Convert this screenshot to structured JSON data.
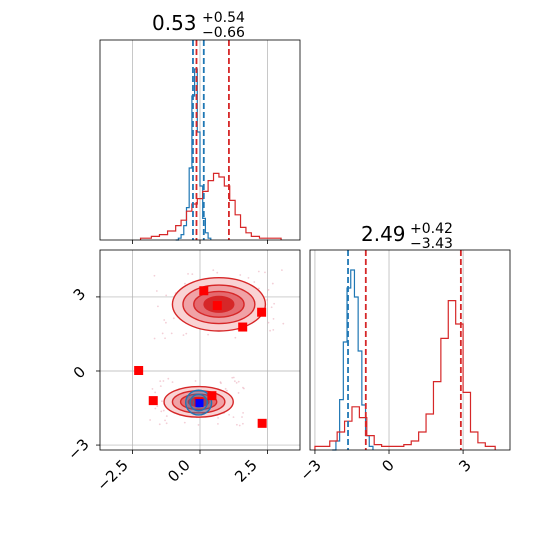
{
  "chart_data": {
    "type": "corner",
    "panels": [
      {
        "id": "hist-x",
        "type": "histogram",
        "title": {
          "value": "0.53",
          "sup": "+0.54",
          "sub": "−0.66"
        },
        "xlim": [
          -3.7,
          3.7
        ],
        "grid": true,
        "series": [
          {
            "name": "",
            "color": "#1f77b4",
            "bins": [
              [
                -0.9,
                0
              ],
              [
                -0.8,
                0.01
              ],
              [
                -0.7,
                0.03
              ],
              [
                -0.6,
                0.08
              ],
              [
                -0.5,
                0.18
              ],
              [
                -0.4,
                0.4
              ],
              [
                -0.3,
                0.8
              ],
              [
                -0.2,
                0.95
              ],
              [
                -0.1,
                0.6
              ],
              [
                0.0,
                0.3
              ],
              [
                0.1,
                0.12
              ],
              [
                0.2,
                0.04
              ],
              [
                0.3,
                0.01
              ],
              [
                0.4,
                0
              ]
            ]
          },
          {
            "name": "",
            "color": "#d62728",
            "bins": [
              [
                -2.2,
                0.01
              ],
              [
                -1.8,
                0.02
              ],
              [
                -1.5,
                0.03
              ],
              [
                -1.2,
                0.05
              ],
              [
                -0.9,
                0.08
              ],
              [
                -0.7,
                0.11
              ],
              [
                -0.5,
                0.16
              ],
              [
                -0.3,
                0.2
              ],
              [
                -0.1,
                0.23
              ],
              [
                0.1,
                0.27
              ],
              [
                0.3,
                0.33
              ],
              [
                0.5,
                0.37
              ],
              [
                0.7,
                0.35
              ],
              [
                0.9,
                0.3
              ],
              [
                1.1,
                0.22
              ],
              [
                1.3,
                0.14
              ],
              [
                1.5,
                0.07
              ],
              [
                1.7,
                0.04
              ],
              [
                1.9,
                0.02
              ],
              [
                2.2,
                0.01
              ],
              [
                2.6,
                0.01
              ],
              [
                3.0,
                0
              ]
            ]
          }
        ],
        "vlines": [
          {
            "x": -0.26,
            "color": "#1f77b4"
          },
          {
            "x": 0.14,
            "color": "#1f77b4"
          },
          {
            "x": -0.13,
            "color": "#d62728"
          },
          {
            "x": 1.07,
            "color": "#d62728"
          }
        ]
      },
      {
        "id": "scatter-xy",
        "type": "contour",
        "xlim": [
          -3.7,
          3.7
        ],
        "ylim": [
          -3.2,
          4.9
        ],
        "grid": true,
        "red_points": [
          [
            0.14,
            3.25
          ],
          [
            0.64,
            2.65
          ],
          [
            2.28,
            2.38
          ],
          [
            1.58,
            1.78
          ],
          [
            -2.27,
            0.02
          ],
          [
            -1.73,
            -1.2
          ],
          [
            0.44,
            -1.0
          ],
          [
            2.3,
            -2.12
          ],
          [
            -0.04,
            -1.25
          ]
        ],
        "blue_points": [
          [
            -0.02,
            -1.3
          ]
        ],
        "contours": [
          {
            "cx": 0.7,
            "cy": 2.7,
            "levels": [
              [
                1.72,
                1.08
              ],
              [
                1.33,
                0.78
              ],
              [
                0.93,
                0.52
              ],
              [
                0.55,
                0.32
              ]
            ]
          },
          {
            "cx": -0.05,
            "cy": -1.25,
            "levels": [
              [
                1.28,
                0.62
              ],
              [
                0.97,
                0.45
              ],
              [
                0.67,
                0.31
              ],
              [
                0.38,
                0.18
              ]
            ]
          }
        ],
        "blue_contours": {
          "cx": -0.05,
          "cy": -1.28,
          "levels": [
            [
              0.48,
              0.5
            ],
            [
              0.32,
              0.33
            ],
            [
              0.17,
              0.18
            ]
          ]
        }
      },
      {
        "id": "hist-y",
        "type": "histogram",
        "title": {
          "value": "2.49",
          "sup": "+0.42",
          "sub": "−3.43"
        },
        "xlim": [
          -3.2,
          4.9
        ],
        "grid": true,
        "series": [
          {
            "name": "",
            "color": "#1f77b4",
            "bins": [
              [
                -2.3,
                0
              ],
              [
                -2.15,
                0.05
              ],
              [
                -2.0,
                0.28
              ],
              [
                -1.85,
                0.6
              ],
              [
                -1.7,
                0.9
              ],
              [
                -1.55,
                1.0
              ],
              [
                -1.4,
                0.85
              ],
              [
                -1.25,
                0.55
              ],
              [
                -1.1,
                0.25
              ],
              [
                -0.95,
                0.08
              ],
              [
                -0.8,
                0.02
              ],
              [
                -0.65,
                0
              ]
            ]
          },
          {
            "name": "",
            "color": "#d62728",
            "bins": [
              [
                -3.0,
                0.02
              ],
              [
                -2.7,
                0.02
              ],
              [
                -2.4,
                0.05
              ],
              [
                -2.1,
                0.1
              ],
              [
                -1.8,
                0.16
              ],
              [
                -1.5,
                0.24
              ],
              [
                -1.2,
                0.18
              ],
              [
                -0.9,
                0.08
              ],
              [
                -0.6,
                0.03
              ],
              [
                -0.3,
                0.02
              ],
              [
                0.0,
                0.02
              ],
              [
                0.3,
                0.02
              ],
              [
                0.6,
                0.03
              ],
              [
                0.9,
                0.05
              ],
              [
                1.2,
                0.1
              ],
              [
                1.5,
                0.2
              ],
              [
                1.8,
                0.38
              ],
              [
                2.1,
                0.62
              ],
              [
                2.4,
                0.83
              ],
              [
                2.7,
                0.7
              ],
              [
                3.0,
                0.32
              ],
              [
                3.3,
                0.1
              ],
              [
                3.6,
                0.04
              ],
              [
                3.9,
                0.02
              ],
              [
                4.3,
                0.01
              ]
            ]
          }
        ],
        "vlines": [
          {
            "x": -1.66,
            "color": "#1f77b4"
          },
          {
            "x": -0.94,
            "color": "#d62728"
          },
          {
            "x": 2.91,
            "color": "#d62728"
          }
        ]
      }
    ],
    "x_ticks": [
      {
        "value": -2.5,
        "label": "−2.5"
      },
      {
        "value": 0.0,
        "label": "0.0"
      },
      {
        "value": 2.5,
        "label": "2.5"
      }
    ],
    "y_ticks": [
      {
        "value": -3,
        "label": "−3"
      },
      {
        "value": 0,
        "label": "0"
      },
      {
        "value": 3,
        "label": "3"
      }
    ]
  }
}
